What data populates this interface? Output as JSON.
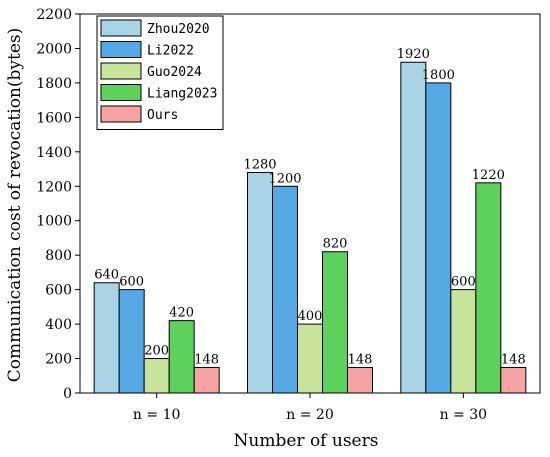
{
  "chart_data": {
    "type": "bar",
    "xlabel": "Number of users",
    "ylabel": "Communication cost of revocation(bytes)",
    "categories": [
      "n = 10",
      "n = 20",
      "n = 30"
    ],
    "ylim": [
      0,
      2200
    ],
    "yticks": [
      0,
      200,
      400,
      600,
      800,
      1000,
      1200,
      1400,
      1600,
      1800,
      2000,
      2200
    ],
    "legend_position": "top-left",
    "grid": false,
    "series": [
      {
        "name": "Zhou2020",
        "color": "#a9d4e6",
        "values": [
          640,
          1280,
          1920
        ]
      },
      {
        "name": "Li2022",
        "color": "#54a8e4",
        "values": [
          600,
          1200,
          1800
        ]
      },
      {
        "name": "Guo2024",
        "color": "#c8e49c",
        "values": [
          200,
          400,
          600
        ]
      },
      {
        "name": "Liang2023",
        "color": "#5dd15b",
        "values": [
          420,
          820,
          1220
        ]
      },
      {
        "name": "Ours",
        "color": "#f5a3a3",
        "values": [
          148,
          148,
          148
        ]
      }
    ]
  }
}
